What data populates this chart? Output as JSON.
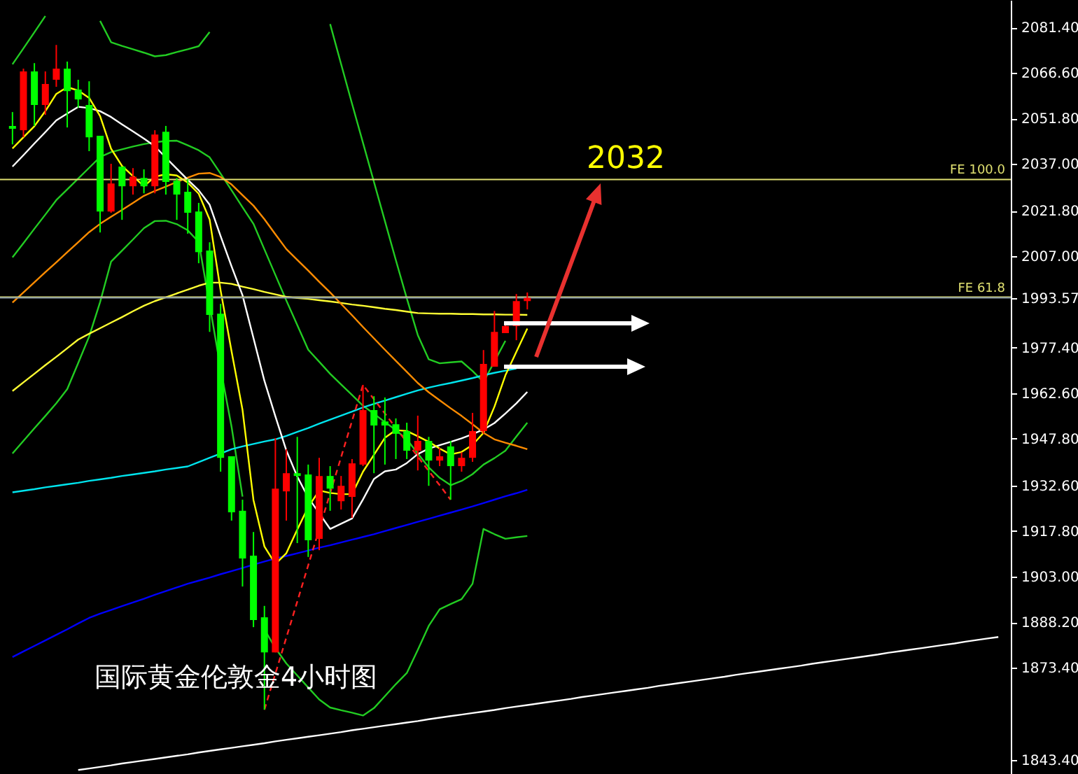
{
  "chart_data": {
    "type": "candlestick",
    "title": "国际黄金伦敦金4小时图",
    "categories": [
      null,
      null,
      null,
      null,
      null,
      null,
      null,
      null,
      null,
      null,
      null,
      null,
      null,
      null,
      null,
      null,
      null,
      null,
      null,
      null,
      null,
      null,
      null,
      null,
      null,
      null,
      null,
      null,
      null,
      null,
      null,
      null,
      null,
      null,
      null,
      null,
      null,
      null,
      null,
      null,
      null,
      null,
      null,
      null,
      null,
      null,
      null,
      null,
      null,
      null,
      null,
      null,
      null,
      null,
      null,
      null,
      null,
      null,
      null,
      null,
      null,
      null,
      null,
      null,
      null,
      null,
      null,
      null,
      null,
      null,
      null,
      null,
      null,
      null,
      null,
      null,
      null,
      null,
      null,
      null,
      null,
      null,
      null,
      null,
      null,
      null,
      null,
      null,
      null,
      null,
      null
    ],
    "ohlc": [
      [
        2049.4,
        2053.9,
        2043.4,
        2048.5
      ],
      [
        2048.0,
        2068.0,
        2045.7,
        2067.1
      ],
      [
        2067.1,
        2069.8,
        2049.4,
        2056.2
      ],
      [
        2056.2,
        2067.1,
        2053.0,
        2063.0
      ],
      [
        2064.4,
        2075.7,
        2062.1,
        2068.0
      ],
      [
        2068.0,
        2070.3,
        2048.9,
        2060.7
      ],
      [
        2061.2,
        2064.4,
        2055.3,
        2058.0
      ],
      [
        2056.2,
        2063.9,
        2041.2,
        2045.7
      ],
      [
        2046.2,
        2046.2,
        2014.8,
        2021.6
      ],
      [
        2021.6,
        2037.1,
        2021.2,
        2030.7
      ],
      [
        2036.2,
        2036.2,
        2018.9,
        2029.8
      ],
      [
        2029.8,
        2035.7,
        2027.1,
        2032.9
      ],
      [
        2032.5,
        2035.3,
        2027.5,
        2029.8
      ],
      [
        2029.8,
        2048.0,
        2027.5,
        2046.6
      ],
      [
        2047.5,
        2049.4,
        2027.1,
        2031.2
      ],
      [
        2031.6,
        2032.5,
        2018.9,
        2027.1
      ],
      [
        2028.0,
        2032.1,
        2014.4,
        2021.2
      ],
      [
        2021.6,
        2024.4,
        2004.8,
        2008.4
      ],
      [
        2008.9,
        2011.6,
        1982.5,
        1988.0
      ],
      [
        1988.4,
        1991.6,
        1937.1,
        1941.6
      ],
      [
        1942.1,
        1942.1,
        1921.2,
        1923.9
      ],
      [
        1924.4,
        1928.0,
        1899.8,
        1908.9
      ],
      [
        1909.8,
        1917.5,
        1886.6,
        1888.9
      ],
      [
        1889.8,
        1893.5,
        1859.8,
        1878.4
      ],
      [
        1878.4,
        1948.0,
        1878.4,
        1931.6
      ],
      [
        1930.7,
        1944.4,
        1921.2,
        1936.6
      ],
      [
        1936.6,
        1948.4,
        1913.9,
        1935.7
      ],
      [
        1936.2,
        1939.4,
        1909.4,
        1914.8
      ],
      [
        1915.3,
        1941.6,
        1911.6,
        1935.7
      ],
      [
        1935.7,
        1938.9,
        1924.4,
        1931.6
      ],
      [
        1927.5,
        1935.7,
        1924.8,
        1932.5
      ],
      [
        1928.9,
        1941.2,
        1922.1,
        1939.8
      ],
      [
        1939.4,
        1965.3,
        1938.9,
        1957.1
      ],
      [
        1957.1,
        1961.6,
        1936.6,
        1952.1
      ],
      [
        1953.4,
        1961.2,
        1939.4,
        1952.1
      ],
      [
        1952.5,
        1954.4,
        1941.2,
        1949.4
      ],
      [
        1950.3,
        1953.0,
        1941.2,
        1943.9
      ],
      [
        1943.9,
        1955.3,
        1937.5,
        1947.1
      ],
      [
        1947.1,
        1948.4,
        1932.5,
        1940.7
      ],
      [
        1940.7,
        1944.8,
        1938.9,
        1942.1
      ],
      [
        1945.3,
        1947.1,
        1928.0,
        1938.9
      ],
      [
        1938.9,
        1943.4,
        1937.1,
        1941.6
      ],
      [
        1941.6,
        1956.2,
        1940.3,
        1950.3
      ],
      [
        1950.3,
        1976.6,
        1949.4,
        1972.1
      ],
      [
        1971.2,
        1989.3,
        1971.2,
        1982.5
      ],
      [
        1982.1,
        1985.7,
        1982.1,
        1984.4
      ],
      [
        1984.4,
        1994.8,
        1979.8,
        1992.5
      ],
      [
        1992.5,
        1995.3,
        1989.8,
        1993.57
      ],
      null,
      null,
      null,
      null,
      null,
      null,
      null,
      null,
      null,
      null,
      null,
      null,
      null,
      null,
      null,
      null,
      null,
      null,
      null,
      null,
      null,
      null,
      null,
      null,
      null,
      null,
      null,
      null,
      null,
      null,
      null,
      null,
      null,
      null,
      null,
      null,
      null,
      null,
      null,
      null,
      null,
      null,
      null
    ],
    "colors": [
      "#00ff00",
      "#ff0000",
      "#00ff00",
      "#ff0000",
      "#ff0000",
      "#00ff00",
      "#00ff00",
      "#00ff00",
      "#00ff00",
      "#ff0000",
      "#00ff00",
      "#ff0000",
      "#00ff00",
      "#ff0000",
      "#00ff00",
      "#00ff00",
      "#00ff00",
      "#00ff00",
      "#00ff00",
      "#00ff00",
      "#00ff00",
      "#00ff00",
      "#00ff00",
      "#00ff00",
      "#ff0000",
      "#ff0000",
      "#00ff00",
      "#00ff00",
      "#ff0000",
      "#00ff00",
      "#ff0000",
      "#ff0000",
      "#ff0000",
      "#00ff00",
      "#00ff00",
      "#00ff00",
      "#00ff00",
      "#ff0000",
      "#00ff00",
      "#ff0000",
      "#00ff00",
      "#ff0000",
      "#ff0000",
      "#ff0000",
      "#ff0000",
      "#ff0000",
      "#ff0000",
      "#ff0000",
      null,
      null,
      null,
      null,
      null,
      null,
      null,
      null,
      null,
      null,
      null,
      null,
      null,
      null,
      null,
      null,
      null,
      null,
      null,
      null,
      null,
      null,
      null,
      null,
      null,
      null,
      null,
      null,
      null,
      null,
      null,
      null,
      null,
      null,
      null,
      null,
      null,
      null,
      null,
      null,
      null,
      null,
      null
    ],
    "ylim": [
      1838.9,
      2090.3
    ],
    "yticks": [
      {
        "value": 2081.4,
        "label": "2081.40"
      },
      {
        "value": 2066.6,
        "label": "2066.60"
      },
      {
        "value": 2051.8,
        "label": "2051.80"
      },
      {
        "value": 2037.0,
        "label": "2037.00"
      },
      {
        "value": 2021.8,
        "label": "2021.80"
      },
      {
        "value": 2007.0,
        "label": "2007.00"
      },
      1993.57,
      {
        "value": 1977.4,
        "label": "1977.40"
      },
      {
        "value": 1962.6,
        "label": "1962.60"
      },
      {
        "value": 1947.8,
        "label": "1947.80"
      },
      {
        "value": 1932.6,
        "label": "1932.60"
      },
      {
        "value": 1917.8,
        "label": "1917.80"
      },
      {
        "value": 1903.0,
        "label": "1903.00"
      },
      {
        "value": 1888.2,
        "label": "1888.20"
      },
      {
        "value": 1873.4,
        "label": "1873.40"
      },
      {
        "value": 1843.4,
        "label": "1843.40"
      }
    ],
    "tick_labels": "y",
    "series": [
      {
        "type": "line",
        "color": "#22cc22",
        "values": [
          2069.4,
          2074.6,
          2079.8,
          2085.1,
          null,
          null,
          null,
          null,
          2083.5,
          2076.6,
          2075.4,
          2074.3,
          2073.2,
          2072.0,
          2072.4,
          2073.4,
          2074.3,
          2075.3,
          2079.9,
          null,
          null,
          null,
          null,
          null,
          null,
          null,
          null,
          null,
          null,
          2082.5,
          2069.5,
          2056.6,
          2043.9,
          2031.2,
          2018.5,
          2005.8,
          1993.4,
          1981.5,
          1973.6,
          1972.3,
          1972.6,
          1972.9,
          1969.8,
          1966.2,
          1972.9,
          1979.6,
          null,
          null,
          null,
          null,
          null,
          null,
          null,
          null,
          null,
          null,
          null,
          null,
          null,
          null,
          null,
          null,
          null,
          null,
          null,
          null,
          null,
          null,
          null,
          null,
          null,
          null,
          null,
          null,
          null,
          null,
          null,
          null,
          null,
          null,
          null,
          null,
          null,
          null,
          null,
          null,
          null,
          null,
          null,
          null,
          null
        ]
      },
      {
        "type": "line",
        "color": "#22cc22",
        "values": [
          2006.7,
          2011.3,
          2016.0,
          2020.6,
          2025.3,
          2028.8,
          2032.3,
          2035.8,
          2039.3,
          2040.9,
          2041.8,
          2042.7,
          2043.5,
          2044.1,
          2044.5,
          2044.6,
          2043.1,
          2041.5,
          2039.2,
          2033.9,
          2028.5,
          2023.0,
          2017.6,
          2009.3,
          2001.0,
          1992.7,
          1984.7,
          1976.7,
          1972.8,
          1968.9,
          1965.4,
          1962.0,
          1958.5,
          1955.9,
          1953.2,
          1950.6,
          1947.6,
          1943.0,
          1938.5,
          1935.1,
          1932.7,
          1934.1,
          1936.3,
          1939.4,
          1941.5,
          1943.9,
          1948.5,
          1953.0,
          null,
          null,
          null,
          null,
          null,
          null,
          null,
          null,
          null,
          null,
          null,
          null,
          null,
          null,
          null,
          null,
          null,
          null,
          null,
          null,
          null,
          null,
          null,
          null,
          null,
          null,
          null,
          null,
          null,
          null,
          null,
          null,
          null,
          null,
          null,
          null,
          null,
          null,
          null,
          null,
          null,
          null,
          null
        ]
      },
      {
        "type": "line",
        "color": "#22cc22",
        "values": [
          1943.0,
          1947.1,
          1951.2,
          1955.2,
          1959.3,
          1963.9,
          1972.4,
          1981.0,
          1992.2,
          2005.3,
          2008.9,
          2012.5,
          2016.2,
          2018.5,
          2018.6,
          2017.5,
          2015.5,
          2011.7,
          1991.3,
          1970.6,
          1951.7,
          1929.0,
          null,
          1885.9,
          1879.8,
          1874.8,
          1870.9,
          1867.0,
          1863.1,
          1860.5,
          1859.6,
          1858.8,
          1857.9,
          1860.3,
          1864.2,
          1868.1,
          1871.7,
          1879.2,
          1887.0,
          1892.4,
          1894.1,
          1895.7,
          1900.7,
          1918.5,
          1916.8,
          1915.3,
          1915.8,
          1916.2,
          null,
          null,
          null,
          null,
          null,
          null,
          null,
          null,
          null,
          null,
          null,
          null,
          null,
          null,
          null,
          null,
          null,
          null,
          null,
          null,
          null,
          null,
          null,
          null,
          null,
          null,
          null,
          null,
          null,
          null,
          null,
          null,
          null,
          null,
          null,
          null,
          null,
          null,
          null,
          null,
          null,
          null,
          null
        ]
      },
      {
        "type": "line",
        "color": "#ffff33",
        "values": [
          1963.3,
          1966.1,
          1968.9,
          1971.7,
          1974.4,
          1977.2,
          1980.0,
          1981.9,
          1983.7,
          1985.5,
          1987.3,
          1989.2,
          1991.0,
          1992.5,
          1993.7,
          1995.0,
          1996.2,
          1997.5,
          1998.5,
          1998.5,
          1998.1,
          1997.2,
          1996.4,
          1995.5,
          1994.7,
          1993.9,
          1993.5,
          1993.2,
          1992.8,
          1992.4,
          1991.9,
          1991.4,
          1991.0,
          1990.5,
          1990.0,
          1989.6,
          1989.1,
          1988.6,
          1988.5,
          1988.4,
          1988.4,
          1988.3,
          1988.3,
          1988.2,
          1988.2,
          1988.1,
          1988.1,
          1988.0,
          null,
          null,
          null,
          null,
          null,
          null,
          null,
          null,
          null,
          null,
          null,
          null,
          null,
          null,
          null,
          null,
          null,
          null,
          null,
          null,
          null,
          null,
          null,
          null,
          null,
          null,
          null,
          null,
          null,
          null,
          null,
          null,
          null,
          null,
          null,
          null,
          null,
          null,
          null,
          null,
          null,
          null,
          null
        ]
      },
      {
        "type": "line",
        "color": "#00e5ee",
        "values": [
          1930.4,
          1930.9,
          1931.4,
          1932.0,
          1932.5,
          1933.0,
          1933.5,
          1934.1,
          1934.6,
          1935.1,
          1935.7,
          1936.2,
          1936.7,
          1937.2,
          1937.8,
          1938.3,
          1938.8,
          1940.2,
          1941.6,
          1943.0,
          1944.4,
          1945.3,
          1946.1,
          1946.9,
          1947.6,
          1948.7,
          1950.0,
          1951.3,
          1952.7,
          1954.0,
          1955.3,
          1956.6,
          1958.0,
          1959.1,
          1960.2,
          1961.3,
          1962.4,
          1963.5,
          1964.4,
          1965.2,
          1965.9,
          1966.7,
          1967.5,
          1968.4,
          1969.2,
          1969.9,
          1970.6,
          null,
          null,
          null,
          null,
          null,
          null,
          null,
          null,
          null,
          null,
          null,
          null,
          null,
          null,
          null,
          null,
          null,
          null,
          null,
          null,
          null,
          null,
          null,
          null,
          null,
          null,
          null,
          null,
          null,
          null,
          null,
          null,
          null,
          null,
          null,
          null,
          null,
          null,
          null,
          null,
          null,
          null,
          null,
          null
        ]
      },
      {
        "type": "line",
        "color": "#0000ff",
        "values": [
          1876.9,
          1878.7,
          1880.5,
          1882.3,
          1884.1,
          1885.9,
          1887.8,
          1889.6,
          1891.0,
          1892.2,
          1893.4,
          1894.6,
          1895.8,
          1897.1,
          1898.3,
          1899.5,
          1900.7,
          1901.7,
          1902.7,
          1903.8,
          1904.8,
          1905.8,
          1906.9,
          1907.9,
          1908.9,
          1909.7,
          1910.6,
          1911.5,
          1912.4,
          1913.2,
          1914.1,
          1915.0,
          1915.9,
          1916.8,
          1917.8,
          1918.8,
          1919.8,
          1920.8,
          1921.8,
          1922.8,
          1923.8,
          1924.8,
          1925.8,
          1926.9,
          1928.0,
          1929.1,
          1930.1,
          1931.2,
          null,
          null,
          null,
          null,
          null,
          null,
          null,
          null,
          null,
          null,
          null,
          null,
          null,
          null,
          null,
          null,
          null,
          null,
          null,
          null,
          null,
          null,
          null,
          null,
          null,
          null,
          null,
          null,
          null,
          null,
          null,
          null,
          null,
          null,
          null,
          null,
          null,
          null,
          null,
          null,
          null,
          null,
          null
        ]
      },
      {
        "type": "line",
        "color": "#ff8c00",
        "values": [
          1992.0,
          1995.3,
          1998.6,
          2001.9,
          2005.1,
          2008.4,
          2011.6,
          2014.9,
          2017.6,
          2019.9,
          2022.1,
          2024.4,
          2026.7,
          2028.3,
          2029.7,
          2031.2,
          2032.6,
          2033.9,
          2034.1,
          2032.8,
          2030.4,
          2026.9,
          2023.5,
          2019.1,
          2014.2,
          2009.4,
          2005.9,
          2002.4,
          1998.8,
          1995.3,
          1991.6,
          1987.9,
          1984.1,
          1980.4,
          1976.7,
          1973.1,
          1969.5,
          1965.9,
          1962.9,
          1960.3,
          1957.7,
          1955.2,
          1952.5,
          1949.7,
          1947.6,
          1946.5,
          1945.5,
          1944.4,
          null,
          null,
          null,
          null,
          null,
          null,
          null,
          null,
          null,
          null,
          null,
          null,
          null,
          null,
          null,
          null,
          null,
          null,
          null,
          null,
          null,
          null,
          null,
          null,
          null,
          null,
          null,
          null,
          null,
          null,
          null,
          null,
          null,
          null,
          null,
          null,
          null,
          null,
          null,
          null,
          null,
          null,
          null
        ]
      },
      {
        "type": "line",
        "color": "#ffffff",
        "values": [
          2036.2,
          2039.9,
          2043.7,
          2047.4,
          2051.2,
          2053.4,
          2055.6,
          2055.2,
          2054.2,
          2052.3,
          2049.9,
          2047.6,
          2045.3,
          2042.8,
          2039.1,
          2035.5,
          2031.9,
          2028.5,
          2023.8,
          2013.6,
          2003.8,
          1994.4,
          1980.5,
          1966.6,
          1955.1,
          1944.0,
          1935.5,
          1928.7,
          1923.6,
          1918.5,
          1920.2,
          1921.9,
          1928.1,
          1934.7,
          1937.2,
          1937.8,
          1939.9,
          1942.8,
          1944.6,
          1945.7,
          1946.8,
          1947.9,
          1949.3,
          1950.8,
          1952.9,
          1956.0,
          1959.3,
          1963.0,
          null,
          null,
          null,
          null,
          null,
          null,
          null,
          null,
          null,
          null,
          null,
          null,
          null,
          null,
          null,
          null,
          null,
          null,
          null,
          null,
          null,
          null,
          null,
          null,
          null,
          null,
          null,
          null,
          null,
          null,
          null,
          null,
          null,
          null,
          null,
          null,
          null,
          null,
          null,
          null,
          null,
          null,
          null
        ]
      },
      {
        "type": "line",
        "color": "#ffff00",
        "values": [
          2042.1,
          2045.7,
          2049.3,
          2054.2,
          2059.8,
          2062.0,
          2060.9,
          2058.5,
          2052.6,
          2042.0,
          2036.4,
          2033.1,
          2029.8,
          2032.9,
          2033.7,
          2033.3,
          2031.0,
          2027.4,
          2019.0,
          1996.0,
          1976.2,
          1957.2,
          1927.9,
          1912.8,
          1907.1,
          1910.6,
          1918.3,
          1925.6,
          1931.0,
          1930.2,
          1929.8,
          1929.8,
          1937.1,
          1942.6,
          1948.1,
          1950.6,
          1950.3,
          1948.6,
          1946.8,
          1944.6,
          1942.7,
          1943.5,
          1945.8,
          1949.7,
          1958.2,
          1968.4,
          1976.0,
          1983.6,
          null,
          null,
          null,
          null,
          null,
          null,
          null,
          null,
          null,
          null,
          null,
          null,
          null,
          null,
          null,
          null,
          null,
          null,
          null,
          null,
          null,
          null,
          null,
          null,
          null,
          null,
          null,
          null,
          null,
          null,
          null,
          null,
          null,
          null,
          null,
          null,
          null,
          null,
          null,
          null,
          null,
          null,
          null
        ]
      },
      {
        "type": "line",
        "color": "#ff2020",
        "line_style": "dashed",
        "values": [
          null,
          null,
          null,
          null,
          null,
          null,
          null,
          null,
          null,
          null,
          null,
          null,
          null,
          null,
          null,
          null,
          null,
          null,
          null,
          null,
          null,
          null,
          null,
          1859.8,
          1871.5,
          1883.2,
          1894.9,
          1906.7,
          1918.4,
          1930.1,
          1941.8,
          1953.6,
          1965.3,
          1960.6,
          1956.0,
          1951.3,
          1946.7,
          1942.0,
          1937.3,
          1932.7,
          1928.0,
          null,
          null,
          null,
          null,
          null,
          null,
          null,
          null,
          null,
          null,
          null,
          null,
          null,
          null,
          null,
          null,
          null,
          null,
          null,
          null,
          null,
          null,
          null,
          null,
          null,
          null,
          null,
          null,
          null,
          null,
          null,
          null,
          null,
          null,
          null,
          null,
          null,
          null,
          null,
          null,
          null,
          null,
          null,
          null,
          null,
          null,
          null,
          null,
          null,
          null
        ]
      },
      {
        "type": "line",
        "color": "#ffffff",
        "values": [
          null,
          null,
          null,
          null,
          null,
          null,
          1840.2,
          1840.7,
          1841.2,
          1841.7,
          1842.3,
          1842.8,
          1843.3,
          1843.8,
          1844.3,
          1844.8,
          1845.3,
          1845.9,
          1846.4,
          1846.9,
          1847.4,
          1847.9,
          1848.4,
          1848.9,
          1849.5,
          1850.0,
          1850.5,
          1851.0,
          1851.5,
          1852.0,
          1852.5,
          1853.1,
          1853.6,
          1854.1,
          1854.6,
          1855.1,
          1855.6,
          1856.1,
          1856.7,
          1857.2,
          1857.7,
          1858.2,
          1858.7,
          1859.2,
          1859.7,
          1860.3,
          1860.8,
          1861.3,
          1861.8,
          1862.3,
          1862.8,
          1863.3,
          1863.9,
          1864.4,
          1864.9,
          1865.4,
          1865.9,
          1866.4,
          1866.9,
          1867.5,
          1868.0,
          1868.5,
          1869.0,
          1869.5,
          1870.0,
          1870.5,
          1871.1,
          1871.6,
          1872.1,
          1872.6,
          1873.1,
          1873.6,
          1874.1,
          1874.7,
          1875.2,
          1875.7,
          1876.2,
          1876.7,
          1877.2,
          1877.7,
          1878.3,
          1878.8,
          1879.3,
          1879.8,
          1880.3,
          1880.8,
          1881.3,
          1881.9,
          1882.4,
          1882.9,
          1883.4
        ]
      }
    ],
    "ref_lines": [
      {
        "axis": "y",
        "value": 2032.0,
        "label": "FE 100.0",
        "color": "#e0e070"
      },
      {
        "axis": "y",
        "value": 1993.8,
        "label": "FE 61.8",
        "color": "#e0e070"
      },
      {
        "axis": "y",
        "value": 1993.57,
        "color": "#8899aa"
      }
    ],
    "annotations": [
      "2032"
    ]
  }
}
